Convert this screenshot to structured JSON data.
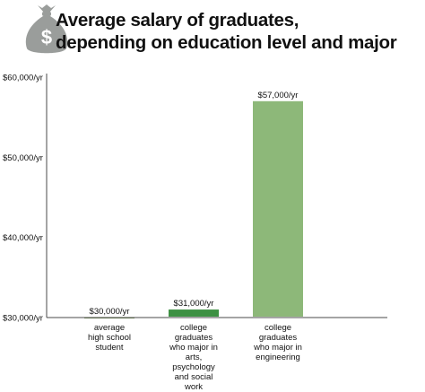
{
  "title_line1": "Average salary of graduates,",
  "title_line2": "depending on education level and major",
  "icon": "money-bag-icon",
  "chart_data": {
    "type": "bar",
    "title": "Average salary of graduates, depending on education level and major",
    "xlabel": "",
    "ylabel": "",
    "ylim": [
      30000,
      60000
    ],
    "y_ticks": [
      30000,
      40000,
      50000,
      60000
    ],
    "y_tick_labels": [
      "$30,000/yr",
      "$40,000/yr",
      "$50,000/yr",
      "$60,000/yr"
    ],
    "categories": [
      [
        "average",
        "high school",
        "student"
      ],
      [
        "college",
        "graduates",
        "who major in",
        "arts,",
        "psychology",
        "and social",
        "work"
      ],
      [
        "college",
        "graduates",
        "who major in",
        "engineering"
      ]
    ],
    "values": [
      30000,
      31000,
      57000
    ],
    "data_labels": [
      "$30,000/yr",
      "$31,000/yr",
      "$57,000/yr"
    ],
    "colors": [
      "#5f6e4e",
      "#3d9143",
      "#8db879"
    ],
    "axis_color": "#4a4a4a",
    "grid": false,
    "legend": "none"
  }
}
